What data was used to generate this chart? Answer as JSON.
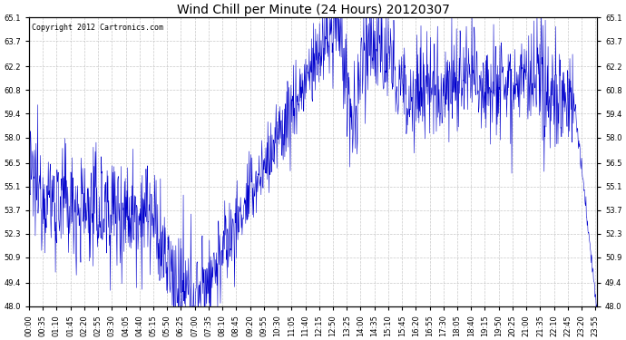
{
  "title": "Wind Chill per Minute (24 Hours) 20120307",
  "copyright": "Copyright 2012 Cartronics.com",
  "line_color": "#0000CC",
  "background_color": "#ffffff",
  "grid_color": "#bbbbbb",
  "ylim": [
    48.0,
    65.1
  ],
  "yticks": [
    48.0,
    49.4,
    50.9,
    52.3,
    53.7,
    55.1,
    56.5,
    58.0,
    59.4,
    60.8,
    62.2,
    63.7,
    65.1
  ],
  "xtick_labels": [
    "00:00",
    "00:35",
    "01:10",
    "01:45",
    "02:20",
    "02:55",
    "03:30",
    "04:05",
    "04:40",
    "05:15",
    "05:50",
    "06:25",
    "07:00",
    "07:35",
    "08:10",
    "08:45",
    "09:20",
    "09:55",
    "10:30",
    "11:05",
    "11:40",
    "12:15",
    "12:50",
    "13:25",
    "14:00",
    "14:35",
    "15:10",
    "15:45",
    "16:20",
    "16:55",
    "17:30",
    "18:05",
    "18:40",
    "19:15",
    "19:50",
    "20:25",
    "21:00",
    "21:35",
    "22:10",
    "22:45",
    "23:20",
    "23:55"
  ],
  "figsize": [
    6.9,
    3.75
  ],
  "dpi": 100,
  "title_fontsize": 10,
  "tick_fontsize": 6,
  "copyright_fontsize": 6
}
